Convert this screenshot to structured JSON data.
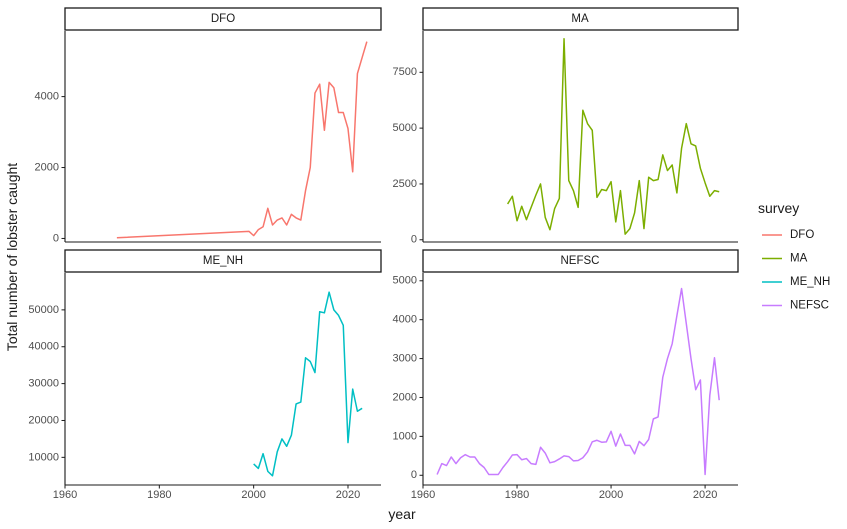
{
  "chart_data": {
    "type": "line",
    "facet_layout": "2x2 grid, free y scales, shared x axis",
    "xlabel": "year",
    "ylabel": "Total number of lobster caught",
    "xlim": [
      1960,
      2027
    ],
    "x_ticks": [
      1960,
      1980,
      2000,
      2020
    ],
    "grid": false,
    "legend": {
      "title": "survey",
      "placement": "right",
      "entries": [
        {
          "name": "DFO",
          "color": "#F8766D"
        },
        {
          "name": "MA",
          "color": "#7CAE00"
        },
        {
          "name": "ME_NH",
          "color": "#00BFC4"
        },
        {
          "name": "NEFSC",
          "color": "#C77CFF"
        }
      ]
    },
    "panels": [
      {
        "name": "DFO",
        "color": "#F8766D",
        "ylim": [
          -100,
          5850
        ],
        "y_ticks": [
          0,
          2000,
          4000
        ],
        "x": [
          1971,
          1999,
          2000,
          2001,
          2002,
          2003,
          2004,
          2005,
          2006,
          2007,
          2008,
          2009,
          2010,
          2011,
          2012,
          2013,
          2014,
          2015,
          2016,
          2017,
          2018,
          2019,
          2020,
          2021,
          2022,
          2023,
          2024
        ],
        "y": [
          20,
          200,
          80,
          250,
          330,
          850,
          380,
          520,
          580,
          380,
          680,
          580,
          520,
          1350,
          2000,
          4100,
          4350,
          3050,
          4400,
          4250,
          3550,
          3550,
          3100,
          1880,
          4650,
          5100,
          5550
        ]
      },
      {
        "name": "MA",
        "color": "#7CAE00",
        "ylim": [
          -100,
          9350
        ],
        "y_ticks": [
          0,
          2500,
          5000,
          7500
        ],
        "x": [
          1978,
          1979,
          1980,
          1981,
          1982,
          1983,
          1984,
          1985,
          1986,
          1987,
          1988,
          1989,
          1990,
          1991,
          1992,
          1993,
          1994,
          1995,
          1996,
          1997,
          1998,
          1999,
          2000,
          2001,
          2002,
          2003,
          2004,
          2005,
          2006,
          2007,
          2008,
          2009,
          2010,
          2011,
          2012,
          2013,
          2014,
          2015,
          2016,
          2017,
          2018,
          2019,
          2020,
          2021,
          2022,
          2023
        ],
        "y": [
          1600,
          1950,
          850,
          1500,
          900,
          1450,
          2000,
          2500,
          1000,
          450,
          1400,
          1850,
          9000,
          2650,
          2200,
          1450,
          5800,
          5200,
          4900,
          1900,
          2250,
          2200,
          2600,
          800,
          2200,
          250,
          500,
          1200,
          2650,
          500,
          2800,
          2650,
          2700,
          3800,
          3100,
          3350,
          2100,
          4100,
          5200,
          4300,
          4200,
          3200,
          2550,
          1950,
          2200,
          2150
        ]
      },
      {
        "name": "ME_NH",
        "color": "#00BFC4",
        "ylim": [
          2500,
          60000
        ],
        "y_ticks": [
          10000,
          20000,
          30000,
          40000,
          50000
        ],
        "x": [
          2000,
          2001,
          2002,
          2003,
          2004,
          2005,
          2006,
          2007,
          2008,
          2009,
          2010,
          2011,
          2012,
          2013,
          2014,
          2015,
          2016,
          2017,
          2018,
          2019,
          2020,
          2021,
          2022,
          2023
        ],
        "y": [
          8200,
          7000,
          11000,
          6200,
          5000,
          11500,
          15000,
          13000,
          16000,
          24500,
          25000,
          37000,
          36000,
          33000,
          49500,
          49200,
          54800,
          50000,
          48500,
          45800,
          14000,
          28500,
          22500,
          23300
        ]
      },
      {
        "name": "NEFSC",
        "color": "#C77CFF",
        "ylim": [
          -250,
          5200
        ],
        "y_ticks": [
          0,
          1000,
          2000,
          3000,
          4000,
          5000
        ],
        "x": [
          1963,
          1964,
          1965,
          1966,
          1967,
          1968,
          1969,
          1970,
          1971,
          1972,
          1973,
          1974,
          1975,
          1976,
          1977,
          1978,
          1979,
          1980,
          1981,
          1982,
          1983,
          1984,
          1985,
          1986,
          1987,
          1988,
          1989,
          1990,
          1991,
          1992,
          1993,
          1994,
          1995,
          1996,
          1997,
          1998,
          1999,
          2000,
          2001,
          2002,
          2003,
          2004,
          2005,
          2006,
          2007,
          2008,
          2009,
          2010,
          2011,
          2012,
          2013,
          2014,
          2015,
          2016,
          2017,
          2018,
          2019,
          2020,
          2021,
          2022,
          2023
        ],
        "y": [
          20,
          300,
          250,
          470,
          300,
          450,
          530,
          470,
          470,
          300,
          200,
          20,
          20,
          20,
          200,
          350,
          520,
          530,
          400,
          430,
          300,
          280,
          720,
          570,
          320,
          350,
          420,
          500,
          480,
          370,
          380,
          450,
          600,
          860,
          900,
          850,
          860,
          1130,
          750,
          1060,
          770,
          770,
          550,
          870,
          760,
          920,
          1450,
          1500,
          2520,
          3000,
          3380,
          4100,
          4800,
          3900,
          3000,
          2200,
          2450,
          20,
          2050,
          3020,
          1930
        ]
      }
    ]
  }
}
